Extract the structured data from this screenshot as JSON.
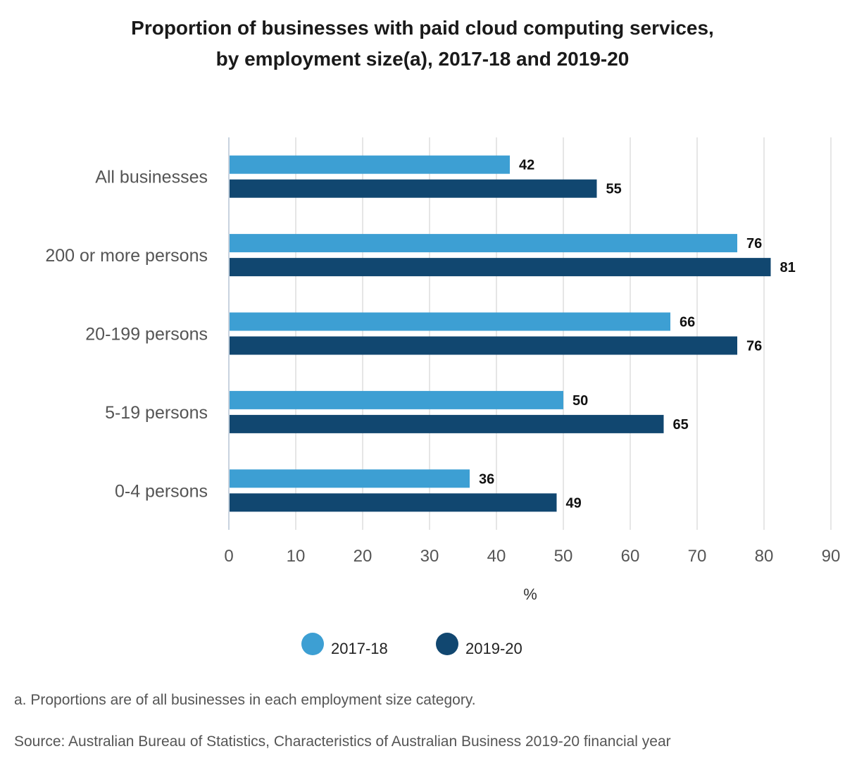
{
  "title_line1": "Proportion of businesses with paid cloud computing services,",
  "title_line2": "by employment size(a), 2017-18 and 2019-20",
  "note": "a. Proportions are of all businesses in each employment size category.",
  "source": "Source: Australian Bureau of Statistics, Characteristics of Australian Business 2019-20 financial year",
  "colors": {
    "series_2017": "#3d9fd3",
    "series_2019": "#114770",
    "grid": "#dddddd",
    "axis_text": "#555555"
  },
  "chart_data": {
    "type": "bar",
    "orientation": "horizontal",
    "title": "Proportion of businesses with paid cloud computing services, by employment size(a), 2017-18 and 2019-20",
    "categories": [
      "All businesses",
      "200 or more persons",
      "20-199 persons",
      "5-19 persons",
      "0-4 persons"
    ],
    "series": [
      {
        "name": "2017-18",
        "values": [
          42,
          76,
          66,
          50,
          36
        ]
      },
      {
        "name": "2019-20",
        "values": [
          55,
          81,
          76,
          65,
          49
        ]
      }
    ],
    "xlabel": "%",
    "ylabel": "",
    "xlim": [
      0,
      90
    ],
    "ticks": [
      0,
      10,
      20,
      30,
      40,
      50,
      60,
      70,
      80,
      90
    ],
    "grid": true,
    "legend": "bottom-center",
    "data_labels": true
  }
}
